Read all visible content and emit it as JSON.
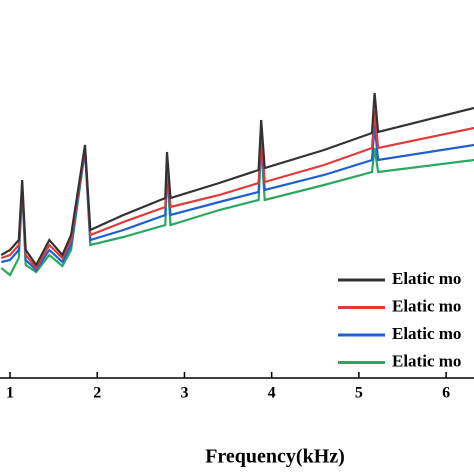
{
  "chart_data": {
    "type": "line",
    "x_label": "Frequency(kHz)",
    "x": [
      0.9,
      1.0,
      1.1,
      1.14,
      1.18,
      1.3,
      1.45,
      1.6,
      1.7,
      1.86,
      1.92,
      2.3,
      2.78,
      2.8,
      2.84,
      3.4,
      3.85,
      3.88,
      3.92,
      4.6,
      5.15,
      5.18,
      5.22,
      6.32
    ],
    "series": [
      {
        "name": "Elatic mo",
        "color": "#333333",
        "values": [
          123,
          128,
          138,
          198,
          128,
          113,
          138,
          123,
          143,
          233,
          148,
          163,
          180,
          226,
          180,
          195,
          208,
          258,
          210,
          228,
          245,
          285,
          246,
          270
        ]
      },
      {
        "name": "Elatic mo",
        "color": "#e03a3a",
        "values": [
          120,
          123,
          133,
          193,
          123,
          110,
          133,
          120,
          138,
          230,
          143,
          156,
          171,
          218,
          171,
          183,
          195,
          248,
          196,
          213,
          230,
          268,
          230,
          250
        ]
      },
      {
        "name": "Elatic mo",
        "color": "#1f5fd0",
        "values": [
          116,
          118,
          128,
          190,
          118,
          108,
          128,
          116,
          133,
          228,
          138,
          148,
          163,
          213,
          163,
          176,
          186,
          243,
          188,
          203,
          218,
          253,
          218,
          233
        ]
      },
      {
        "name": "Elatic mo",
        "color": "#2aa860",
        "values": [
          110,
          103,
          120,
          188,
          113,
          106,
          123,
          112,
          128,
          228,
          133,
          141,
          153,
          208,
          153,
          168,
          178,
          233,
          178,
          193,
          206,
          230,
          206,
          218
        ]
      }
    ],
    "xlim": [
      0.885,
      6.32
    ],
    "xticks": [
      1,
      2,
      3,
      4,
      5,
      6
    ],
    "ylim": [
      0,
      378
    ]
  }
}
